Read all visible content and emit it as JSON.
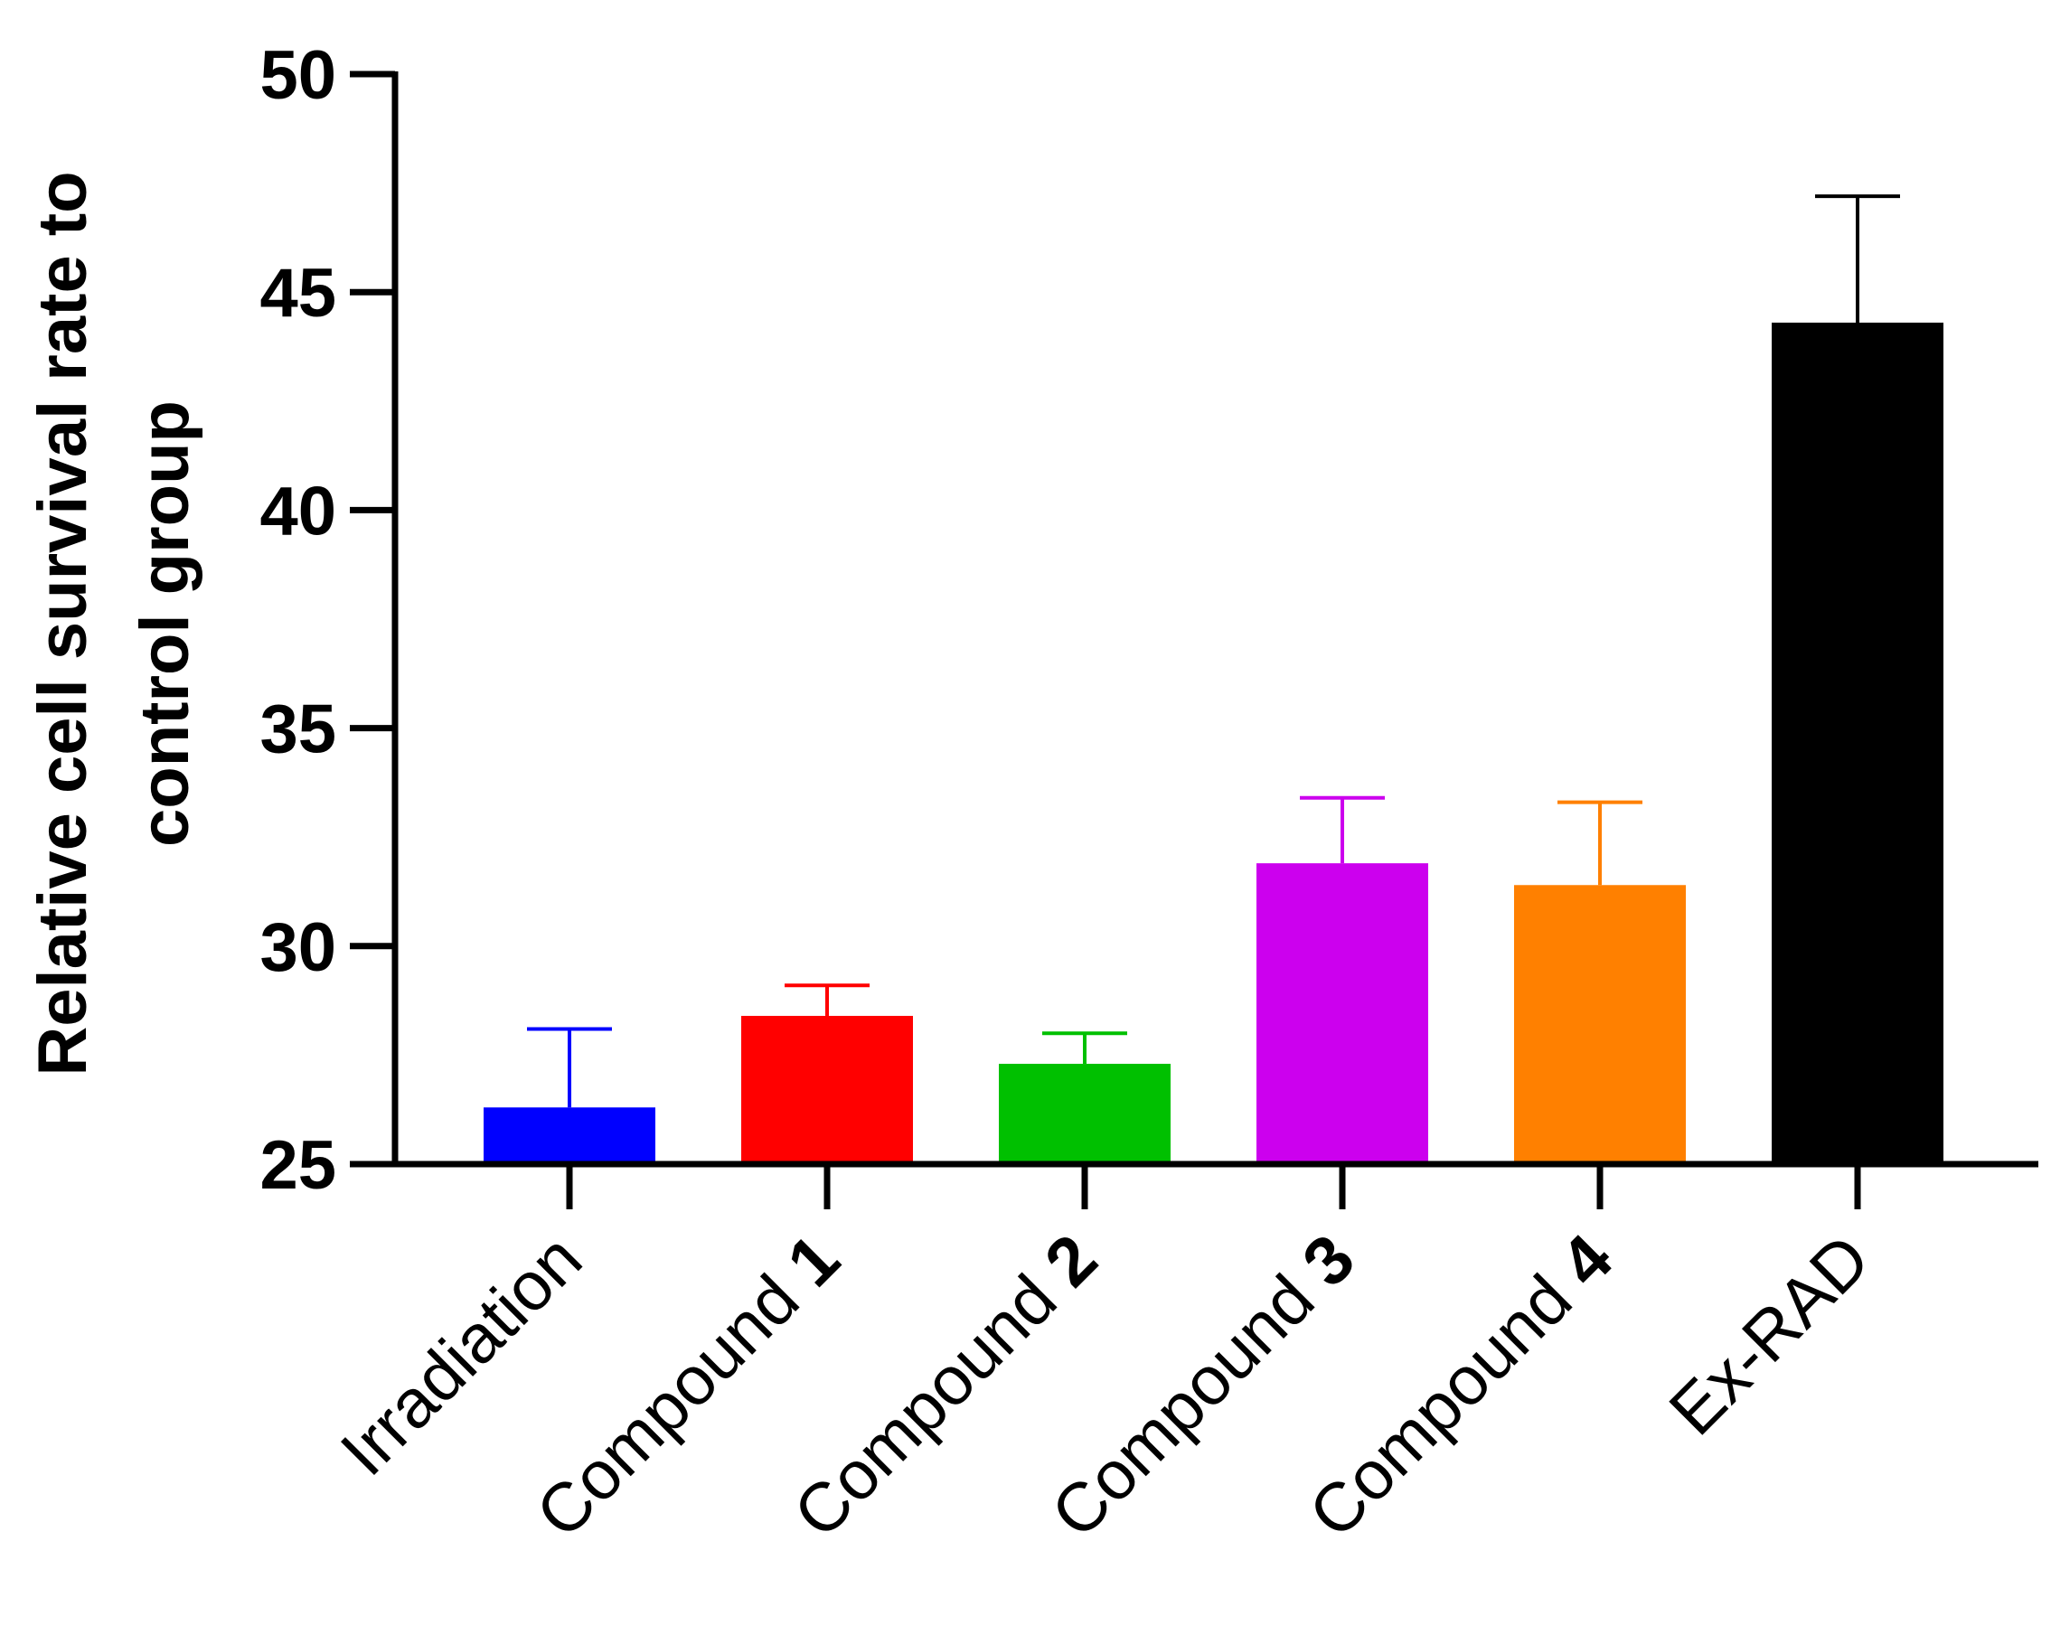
{
  "chart_data": {
    "type": "bar",
    "title": "",
    "xlabel": "",
    "ylabel_lines": [
      "Relative cell survival rate to",
      "control group"
    ],
    "ylim": [
      25,
      50
    ],
    "yticks": [
      25,
      30,
      35,
      40,
      45,
      50
    ],
    "grid": false,
    "categories": [
      {
        "prefix": "Irradiation",
        "suffix": ""
      },
      {
        "prefix": "Compound ",
        "suffix": "1"
      },
      {
        "prefix": "Compound ",
        "suffix": "2"
      },
      {
        "prefix": "Compound ",
        "suffix": "3"
      },
      {
        "prefix": "Compound ",
        "suffix": "4"
      },
      {
        "prefix": "Ex-RAD",
        "suffix": ""
      }
    ],
    "values": [
      26.3,
      28.4,
      27.3,
      31.9,
      31.4,
      44.3
    ],
    "error_upper": [
      28.1,
      29.1,
      28.0,
      33.4,
      33.3,
      47.2
    ],
    "colors": [
      "#0000ff",
      "#ff0000",
      "#00c000",
      "#cc00ee",
      "#ff8000",
      "#000000"
    ]
  }
}
